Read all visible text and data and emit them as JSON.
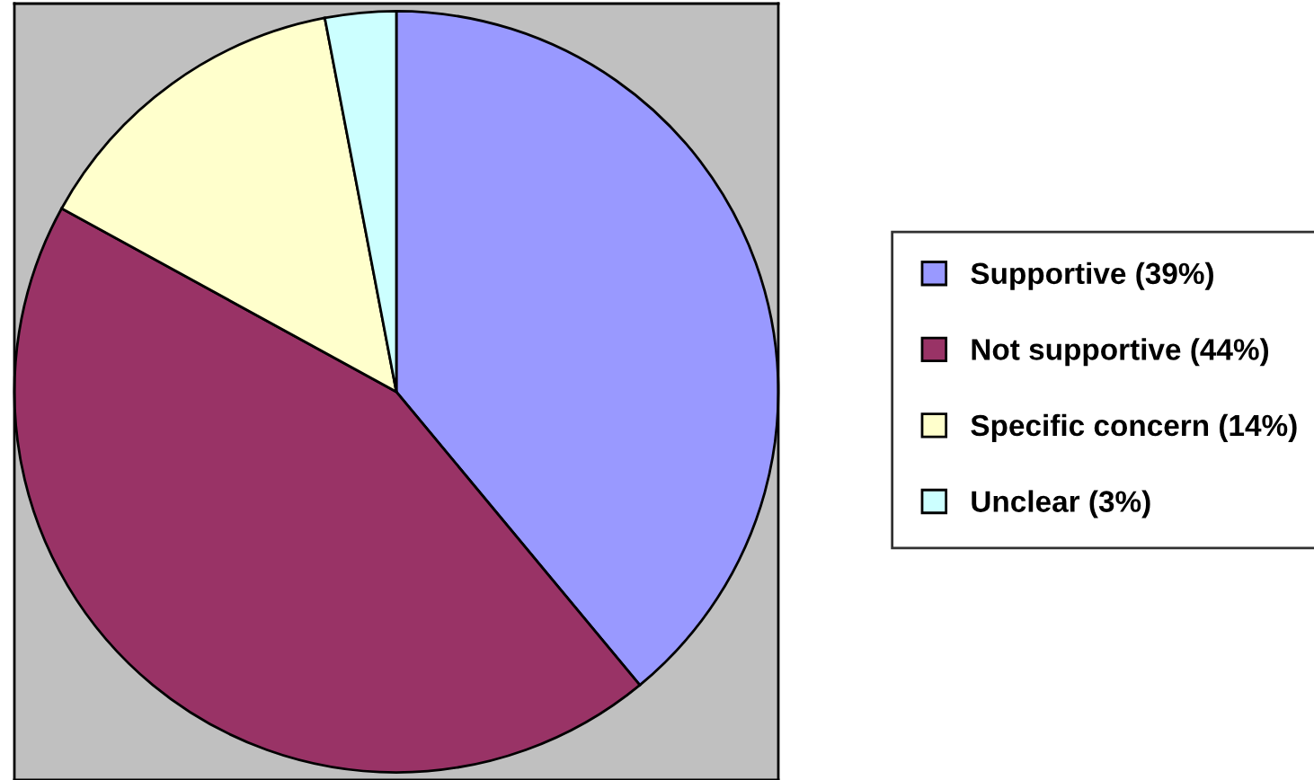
{
  "chart_data": {
    "type": "pie",
    "categories": [
      "Supportive (39%)",
      "Not supportive (44%)",
      "Specific concern (14%)",
      "Unclear (3%)"
    ],
    "values": [
      39,
      44,
      14,
      3
    ],
    "colors": [
      "#9999ff",
      "#993366",
      "#ffffcc",
      "#ccffff"
    ],
    "legend": "right"
  }
}
